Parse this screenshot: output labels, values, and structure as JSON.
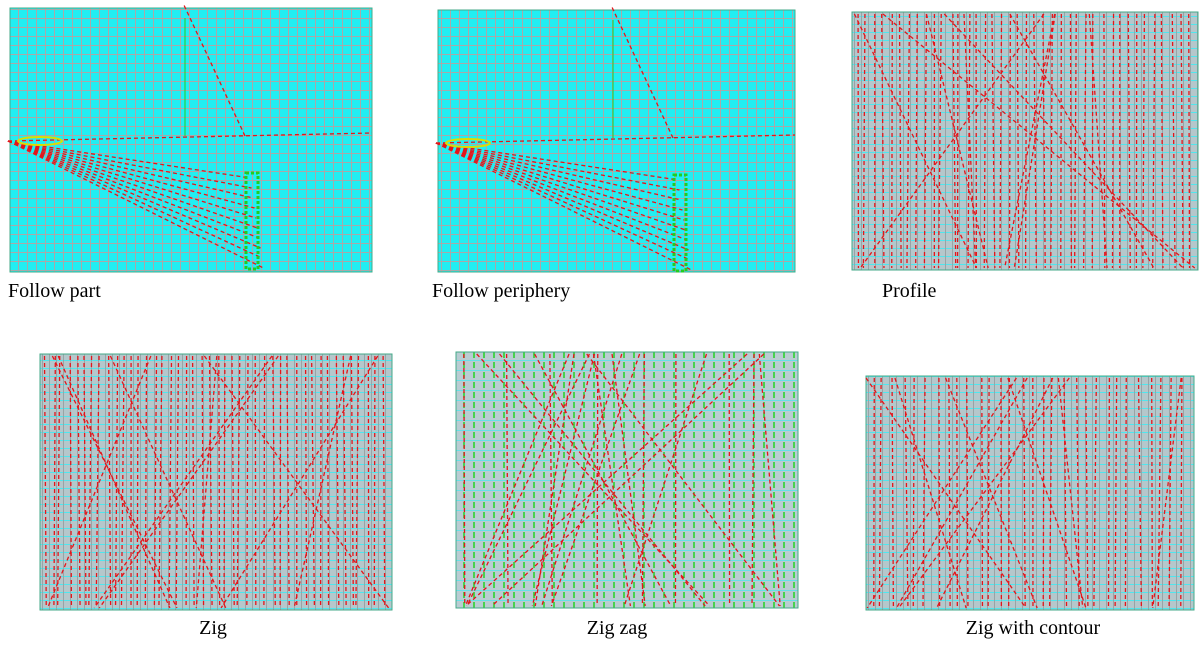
{
  "panels": [
    {
      "caption": "Follow part"
    },
    {
      "caption": "Follow periphery"
    },
    {
      "caption": "Profile"
    },
    {
      "caption": "Zig"
    },
    {
      "caption": "Zig zag"
    },
    {
      "caption": "Zig with contour"
    }
  ]
}
